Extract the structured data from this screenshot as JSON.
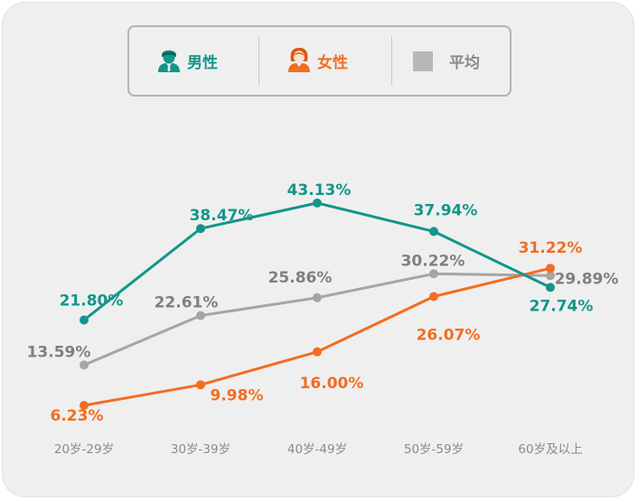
{
  "legend": {
    "male": {
      "label": "男性",
      "icon": "male-person-icon",
      "color": "#12968a"
    },
    "female": {
      "label": "女性",
      "icon": "female-person-icon",
      "color": "#f26d21"
    },
    "average": {
      "label": "平均",
      "icon": "gray-square-icon",
      "color": "#b0b0b0"
    }
  },
  "chart_data": {
    "type": "line",
    "categories": [
      "20岁-29岁",
      "30岁-39岁",
      "40岁-49岁",
      "50岁-59岁",
      "60岁及以上"
    ],
    "series": [
      {
        "name": "男性",
        "color": "#12968a",
        "values": [
          21.8,
          38.47,
          43.13,
          37.94,
          27.74
        ],
        "labels": [
          "21.80%",
          "38.47%",
          "43.13%",
          "37.94%",
          "27.74%"
        ]
      },
      {
        "name": "女性",
        "color": "#f26d21",
        "values": [
          6.23,
          9.98,
          16.0,
          26.07,
          31.22
        ],
        "labels": [
          "6.23%",
          "9.98%",
          "16.00%",
          "26.07%",
          "31.22%"
        ]
      },
      {
        "name": "平均",
        "color": "#a5a5a5",
        "label_color": "#7f7f7f",
        "values": [
          13.59,
          22.61,
          25.86,
          30.22,
          29.89
        ],
        "labels": [
          "13.59%",
          "22.61%",
          "25.86%",
          "30.22%",
          "29.89%"
        ]
      }
    ],
    "title": "",
    "xlabel": "",
    "ylabel": "",
    "grid": false,
    "legend_position": "top"
  }
}
